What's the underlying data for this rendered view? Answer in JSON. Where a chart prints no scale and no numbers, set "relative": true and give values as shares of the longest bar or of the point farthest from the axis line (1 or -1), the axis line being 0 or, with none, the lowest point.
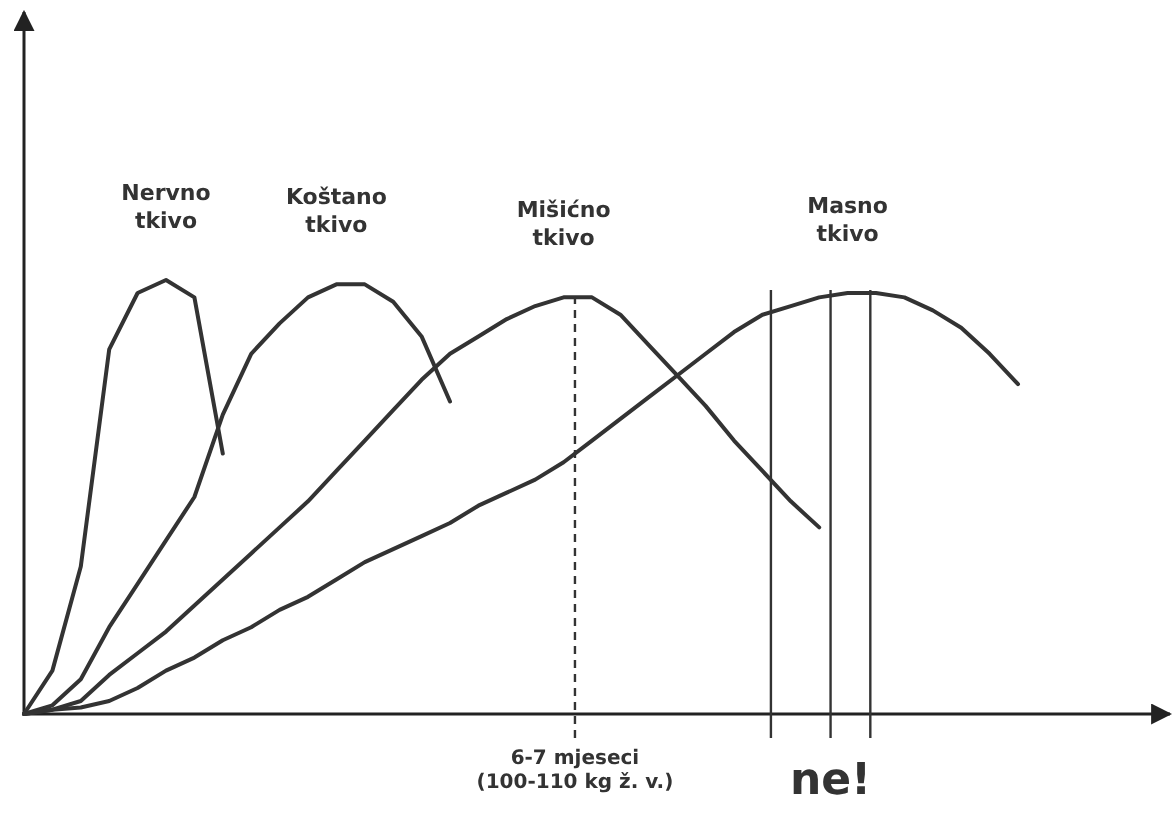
{
  "chart_data": {
    "type": "line",
    "relative": true,
    "line_style": "solid",
    "categories": [
      null,
      null,
      null,
      null,
      null,
      null,
      null,
      null,
      null,
      null,
      null,
      null,
      null,
      null,
      null,
      null,
      null,
      null,
      null,
      null,
      null,
      null,
      null,
      null,
      null,
      null,
      null,
      null,
      null,
      null,
      null,
      null,
      null,
      null,
      null,
      null,
      null,
      null,
      null,
      null,
      null
    ],
    "series": [
      {
        "name": "Nervno tkivo",
        "color": "#333333",
        "values": [
          0,
          0.1,
          0.34,
          0.84,
          0.97,
          1,
          0.96,
          0.6,
          null,
          null,
          null,
          null,
          null,
          null,
          null,
          null,
          null,
          null,
          null,
          null,
          null,
          null,
          null,
          null,
          null,
          null,
          null,
          null,
          null,
          null,
          null,
          null,
          null,
          null,
          null,
          null,
          null,
          null,
          null,
          null,
          null
        ]
      },
      {
        "name": "Koštano tkivo",
        "color": "#333333",
        "values": [
          0,
          0.02,
          0.08,
          0.2,
          0.3,
          0.4,
          0.5,
          0.69,
          0.83,
          0.9,
          0.96,
          0.99,
          0.99,
          0.95,
          0.87,
          0.72,
          null,
          null,
          null,
          null,
          null,
          null,
          null,
          null,
          null,
          null,
          null,
          null,
          null,
          null,
          null,
          null,
          null,
          null,
          null,
          null,
          null,
          null,
          null,
          null,
          null
        ]
      },
      {
        "name": "Mišićno tkivo",
        "color": "#333333",
        "values": [
          0,
          0.01,
          0.03,
          0.09,
          0.14,
          0.19,
          0.25,
          0.31,
          0.37,
          0.43,
          0.49,
          0.56,
          0.63,
          0.7,
          0.77,
          0.83,
          0.87,
          0.91,
          0.94,
          0.96,
          0.96,
          0.92,
          0.85,
          0.78,
          0.71,
          0.63,
          0.56,
          0.49,
          0.43,
          null,
          null,
          null,
          null,
          null,
          null,
          null,
          null,
          null,
          null,
          null,
          null
        ]
      },
      {
        "name": "Masno tkivo",
        "color": "#333333",
        "values": [
          0,
          0.01,
          0.015,
          0.03,
          0.06,
          0.1,
          0.13,
          0.17,
          0.2,
          0.24,
          0.27,
          0.31,
          0.35,
          0.38,
          0.41,
          0.44,
          0.48,
          0.51,
          0.54,
          0.58,
          0.63,
          0.68,
          0.73,
          0.78,
          0.83,
          0.88,
          0.92,
          0.94,
          0.96,
          0.97,
          0.97,
          0.96,
          0.93,
          0.89,
          0.83,
          0.76,
          null,
          null,
          null,
          null,
          null
        ]
      }
    ],
    "annotations": [
      "6-7 mjeseci\n(100-110 kg ž. v.)",
      "ne!"
    ]
  }
}
